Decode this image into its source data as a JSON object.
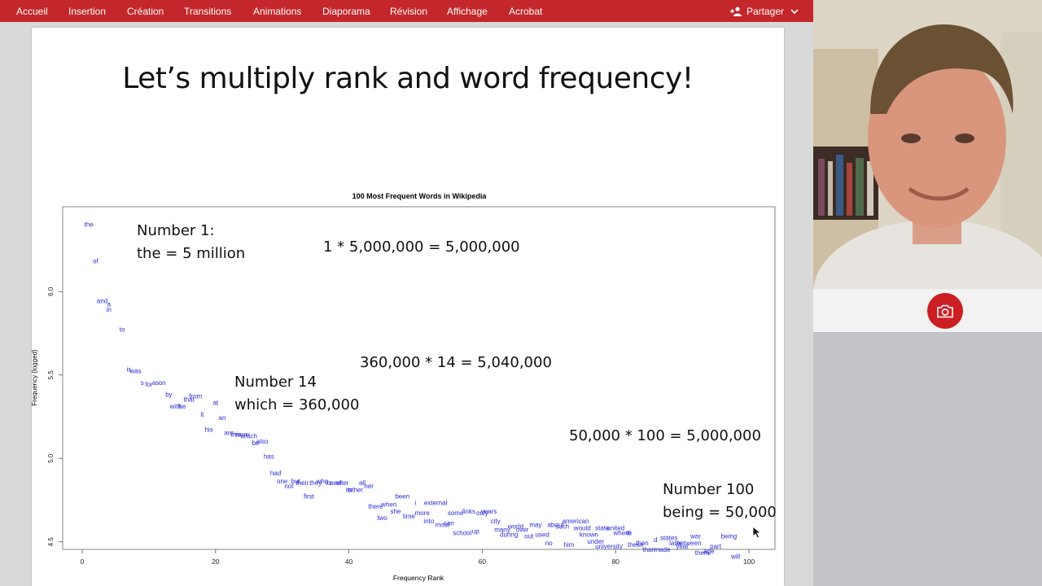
{
  "ribbon": {
    "tabs": [
      "Accueil",
      "Insertion",
      "Création",
      "Transitions",
      "Animations",
      "Diaporama",
      "Révision",
      "Affichage",
      "Acrobat"
    ],
    "share_label": "Partager",
    "accent": "#c4272b"
  },
  "slide": {
    "title": "Let’s multiply rank and word frequency!",
    "callouts": {
      "number1": "Number 1:\nthe = 5 million",
      "calc1": "1 * 5,000,000 = 5,000,000",
      "calc14": "360,000 * 14 = 5,040,000",
      "number14": "Number 14\nwhich = 360,000",
      "calc100": "50,000 * 100 = 5,000,000",
      "number100": "Number 100\nbeing = 50,000"
    }
  },
  "chart_data": {
    "type": "scatter",
    "title": "100 Most Frequent Words in Wikipedia",
    "xlabel": "Frequency Rank",
    "ylabel": "Frequency (logged)",
    "xlim": [
      0,
      100
    ],
    "ylim": [
      4.45,
      6.45
    ],
    "xticks": [
      "0",
      "20",
      "40",
      "60",
      "80",
      "100"
    ],
    "yticks": [
      "4.5",
      "5.0",
      "5.5",
      "6.0"
    ],
    "color": "#2b2bd6",
    "grid": false,
    "points": [
      {
        "x": 1,
        "y": 6.39,
        "label": "the"
      },
      {
        "x": 2,
        "y": 6.17,
        "label": "of"
      },
      {
        "x": 3,
        "y": 5.93,
        "label": "and"
      },
      {
        "x": 4,
        "y": 5.91,
        "label": "a"
      },
      {
        "x": 4,
        "y": 5.88,
        "label": "in"
      },
      {
        "x": 6,
        "y": 5.76,
        "label": "to"
      },
      {
        "x": 7,
        "y": 5.52,
        "label": "is"
      },
      {
        "x": 8,
        "y": 5.51,
        "label": "was"
      },
      {
        "x": 9,
        "y": 5.44,
        "label": "s"
      },
      {
        "x": 10,
        "y": 5.43,
        "label": "for"
      },
      {
        "x": 11,
        "y": 5.44,
        "label": "as"
      },
      {
        "x": 12,
        "y": 5.44,
        "label": "on"
      },
      {
        "x": 13,
        "y": 5.37,
        "label": "by"
      },
      {
        "x": 14,
        "y": 5.3,
        "label": "with"
      },
      {
        "x": 15,
        "y": 5.3,
        "label": "he"
      },
      {
        "x": 16,
        "y": 5.34,
        "label": "that"
      },
      {
        "x": 17,
        "y": 5.36,
        "label": "from"
      },
      {
        "x": 18,
        "y": 5.25,
        "label": "it"
      },
      {
        "x": 19,
        "y": 5.16,
        "label": "his"
      },
      {
        "x": 20,
        "y": 5.32,
        "label": "at"
      },
      {
        "x": 21,
        "y": 5.23,
        "label": "an"
      },
      {
        "x": 22,
        "y": 5.14,
        "label": "are"
      },
      {
        "x": 23,
        "y": 5.13,
        "label": "this"
      },
      {
        "x": 24,
        "y": 5.13,
        "label": "were"
      },
      {
        "x": 25,
        "y": 5.12,
        "label": "which"
      },
      {
        "x": 26,
        "y": 5.08,
        "label": "be"
      },
      {
        "x": 27,
        "y": 5.09,
        "label": "also"
      },
      {
        "x": 28,
        "y": 5.0,
        "label": "has"
      },
      {
        "x": 29,
        "y": 4.9,
        "label": "had"
      },
      {
        "x": 30,
        "y": 4.85,
        "label": "one"
      },
      {
        "x": 31,
        "y": 4.82,
        "label": "not"
      },
      {
        "x": 32,
        "y": 4.85,
        "label": "but"
      },
      {
        "x": 33,
        "y": 4.84,
        "label": "their"
      },
      {
        "x": 34,
        "y": 4.76,
        "label": "first"
      },
      {
        "x": 35,
        "y": 4.84,
        "label": "they"
      },
      {
        "x": 36,
        "y": 4.85,
        "label": "who"
      },
      {
        "x": 37,
        "y": 4.84,
        "label": "its"
      },
      {
        "x": 38,
        "y": 4.84,
        "label": "new"
      },
      {
        "x": 39,
        "y": 4.84,
        "label": "after"
      },
      {
        "x": 40,
        "y": 4.8,
        "label": "its"
      },
      {
        "x": 41,
        "y": 4.8,
        "label": "other"
      },
      {
        "x": 42,
        "y": 4.84,
        "label": "all"
      },
      {
        "x": 43,
        "y": 4.82,
        "label": "her"
      },
      {
        "x": 44,
        "y": 4.7,
        "label": "there"
      },
      {
        "x": 45,
        "y": 4.63,
        "label": "two"
      },
      {
        "x": 46,
        "y": 4.71,
        "label": "when"
      },
      {
        "x": 47,
        "y": 4.67,
        "label": "she"
      },
      {
        "x": 48,
        "y": 4.76,
        "label": "been"
      },
      {
        "x": 49,
        "y": 4.64,
        "label": "time"
      },
      {
        "x": 50,
        "y": 4.72,
        "label": "i"
      },
      {
        "x": 51,
        "y": 4.66,
        "label": "more"
      },
      {
        "x": 52,
        "y": 4.61,
        "label": "into"
      },
      {
        "x": 53,
        "y": 4.72,
        "label": "external"
      },
      {
        "x": 54,
        "y": 4.59,
        "label": "most"
      },
      {
        "x": 55,
        "y": 4.6,
        "label": "can"
      },
      {
        "x": 56,
        "y": 4.66,
        "label": "some"
      },
      {
        "x": 57,
        "y": 4.54,
        "label": "school"
      },
      {
        "x": 58,
        "y": 4.67,
        "label": "links"
      },
      {
        "x": 59,
        "y": 4.55,
        "label": "up"
      },
      {
        "x": 60,
        "y": 4.66,
        "label": "only"
      },
      {
        "x": 61,
        "y": 4.67,
        "label": "years"
      },
      {
        "x": 62,
        "y": 4.61,
        "label": "city"
      },
      {
        "x": 63,
        "y": 4.56,
        "label": "many"
      },
      {
        "x": 64,
        "y": 4.53,
        "label": "during"
      },
      {
        "x": 65,
        "y": 4.58,
        "label": "world"
      },
      {
        "x": 66,
        "y": 4.56,
        "label": "over"
      },
      {
        "x": 67,
        "y": 4.52,
        "label": "out"
      },
      {
        "x": 68,
        "y": 4.59,
        "label": "may"
      },
      {
        "x": 69,
        "y": 4.53,
        "label": "used"
      },
      {
        "x": 70,
        "y": 4.48,
        "label": "no"
      },
      {
        "x": 71,
        "y": 4.59,
        "label": "about"
      },
      {
        "x": 72,
        "y": 4.58,
        "label": "such"
      },
      {
        "x": 73,
        "y": 4.47,
        "label": "him"
      },
      {
        "x": 74,
        "y": 4.61,
        "label": "american"
      },
      {
        "x": 75,
        "y": 4.57,
        "label": "would"
      },
      {
        "x": 76,
        "y": 4.53,
        "label": "known"
      },
      {
        "x": 77,
        "y": 4.49,
        "label": "under"
      },
      {
        "x": 78,
        "y": 4.57,
        "label": "state"
      },
      {
        "x": 79,
        "y": 4.46,
        "label": "university"
      },
      {
        "x": 80,
        "y": 4.57,
        "label": "united"
      },
      {
        "x": 81,
        "y": 4.54,
        "label": "where"
      },
      {
        "x": 82,
        "y": 4.54,
        "label": "th"
      },
      {
        "x": 83,
        "y": 4.47,
        "label": "these"
      },
      {
        "x": 84,
        "y": 4.48,
        "label": "then"
      },
      {
        "x": 85,
        "y": 4.44,
        "label": "than"
      },
      {
        "x": 86,
        "y": 4.5,
        "label": "d"
      },
      {
        "x": 87,
        "y": 4.44,
        "label": "made"
      },
      {
        "x": 88,
        "y": 4.51,
        "label": "states"
      },
      {
        "x": 89,
        "y": 4.48,
        "label": "later"
      },
      {
        "x": 90,
        "y": 4.46,
        "label": "year"
      },
      {
        "x": 91,
        "y": 4.48,
        "label": "between"
      },
      {
        "x": 92,
        "y": 4.52,
        "label": "war"
      },
      {
        "x": 93,
        "y": 4.42,
        "label": "them"
      },
      {
        "x": 94,
        "y": 4.43,
        "label": "age"
      },
      {
        "x": 95,
        "y": 4.46,
        "label": "part"
      },
      {
        "x": 97,
        "y": 4.52,
        "label": "being"
      },
      {
        "x": 98,
        "y": 4.4,
        "label": "will"
      }
    ]
  }
}
